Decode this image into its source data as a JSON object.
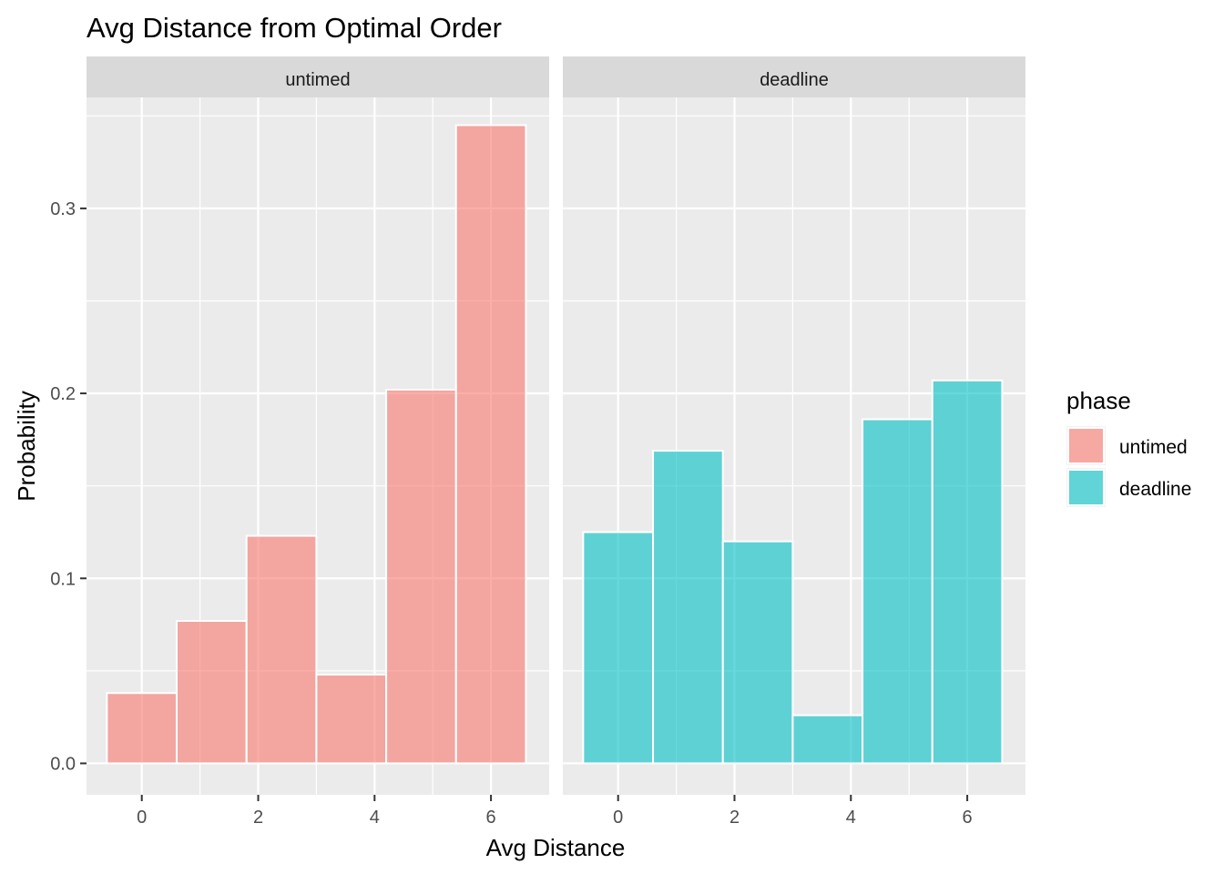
{
  "chart_data": {
    "type": "bar",
    "title": "Avg Distance from Optimal Order",
    "xlabel": "Avg Distance",
    "ylabel": "Probability",
    "xlim": [
      -0.95,
      7.0
    ],
    "ylim": [
      -0.017,
      0.36
    ],
    "x_ticks": [
      0,
      2,
      4,
      6
    ],
    "x_tick_labels": [
      "0",
      "2",
      "4",
      "6"
    ],
    "y_ticks": [
      0.0,
      0.1,
      0.2,
      0.3
    ],
    "y_tick_labels": [
      "0.0",
      "0.1",
      "0.2",
      "0.3"
    ],
    "bin_centers": [
      0,
      1.2,
      2.4,
      3.6,
      4.8,
      6.0
    ],
    "bin_width": 1.2,
    "grid": true,
    "legend": {
      "title": "phase",
      "placement": "right",
      "entries": [
        {
          "label": "untimed",
          "color": "#F8766D"
        },
        {
          "label": "deadline",
          "color": "#00BFC4"
        }
      ]
    },
    "panels": [
      {
        "strip": "untimed",
        "color": "#F8766D",
        "values": [
          0.038,
          0.077,
          0.123,
          0.048,
          0.202,
          0.345
        ]
      },
      {
        "strip": "deadline",
        "color": "#00BFC4",
        "values": [
          0.125,
          0.169,
          0.12,
          0.026,
          0.186,
          0.207
        ]
      }
    ]
  },
  "style": {
    "panel_bg": "#EBEBEB",
    "strip_bg": "#D9D9D9",
    "grid_color": "#FFFFFF",
    "text_color": "#000000",
    "tick_text_color": "#4D4D4D",
    "bar_outline": "#FFFFFF",
    "bar_opacity": 0.6
  }
}
